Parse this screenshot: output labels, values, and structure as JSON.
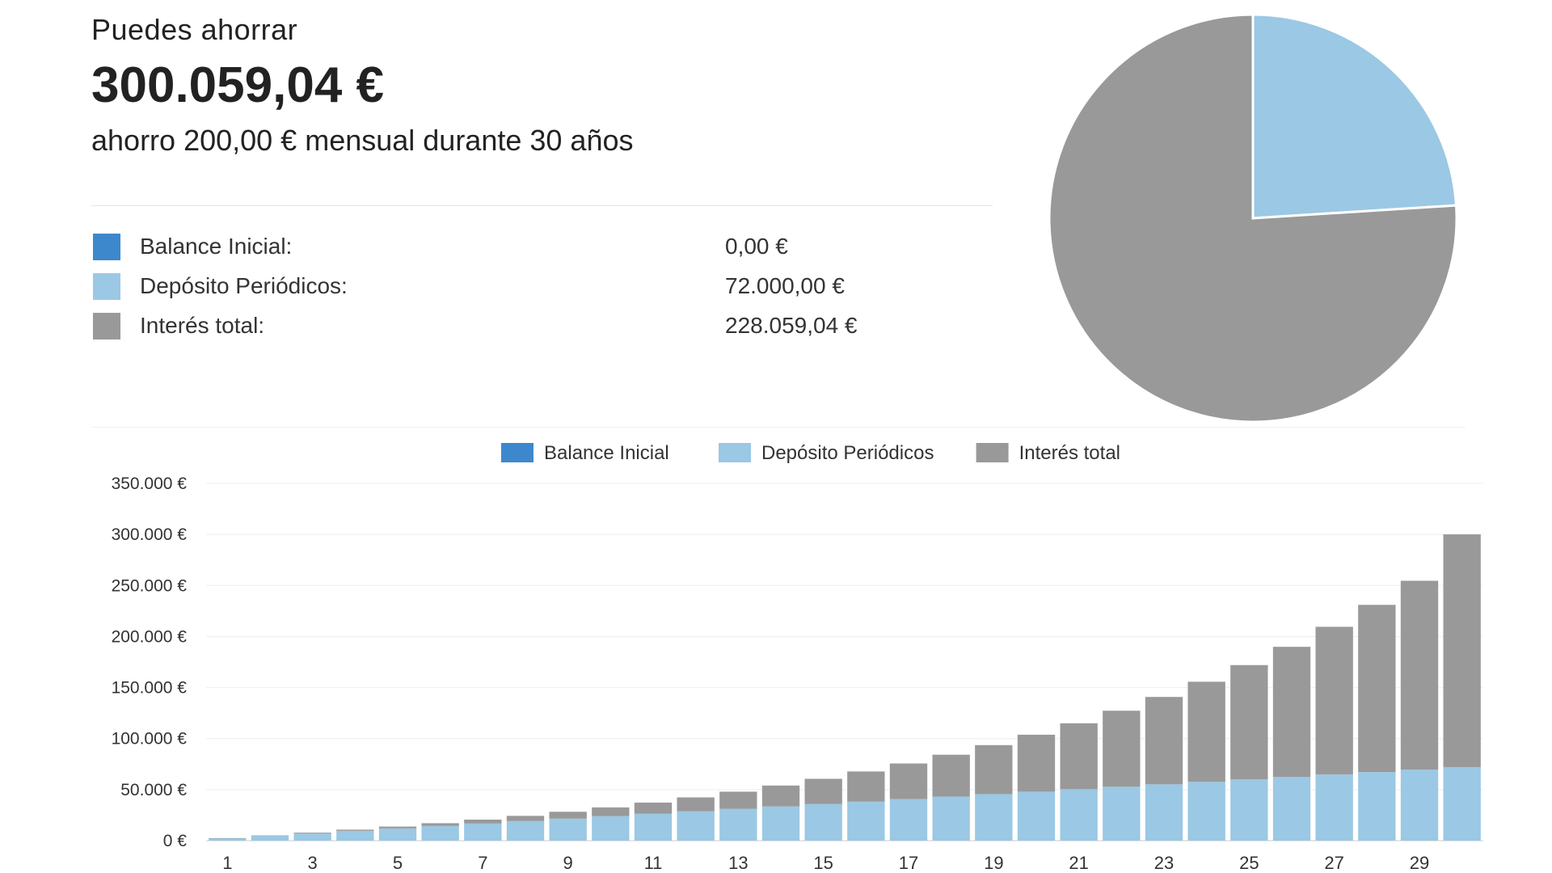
{
  "summary": {
    "label": "Puedes ahorrar",
    "amount": "300.059,04 €",
    "description": "ahorro 200,00 € mensual durante 30 años",
    "rows": [
      {
        "name": "Balance Inicial:",
        "value": "0,00 €",
        "color": "#3d88cc"
      },
      {
        "name": "Depósito Periódicos:",
        "value": "72.000,00 €",
        "color": "#9bc8e4"
      },
      {
        "name": "Interés total:",
        "value": "228.059,04 €",
        "color": "#999999"
      }
    ]
  },
  "chart_data": [
    {
      "type": "pie",
      "labels": [
        "Balance Inicial",
        "Depósito Periódicos",
        "Interés total"
      ],
      "values": [
        0,
        72000,
        228059.04
      ],
      "colors": [
        "#3d88cc",
        "#9bc8e4",
        "#999999"
      ]
    },
    {
      "type": "bar",
      "stacked": true,
      "categories": [
        1,
        2,
        3,
        4,
        5,
        6,
        7,
        8,
        9,
        10,
        11,
        12,
        13,
        14,
        15,
        16,
        17,
        18,
        19,
        20,
        21,
        22,
        23,
        24,
        25,
        26,
        27,
        28,
        29,
        30
      ],
      "x_tick_labels": [
        "1",
        "3",
        "5",
        "7",
        "9",
        "11",
        "13",
        "15",
        "17",
        "19",
        "21",
        "23",
        "25",
        "27",
        "29"
      ],
      "ylim": [
        0,
        350000
      ],
      "y_ticks": [
        0,
        50000,
        100000,
        150000,
        200000,
        250000,
        300000,
        350000
      ],
      "y_tick_labels": [
        "0 €",
        "50.000 €",
        "100.000 €",
        "150.000 €",
        "200.000 €",
        "250.000 €",
        "300.000 €",
        "350.000 €"
      ],
      "legend": [
        "Balance Inicial",
        "Depósito Periódicos",
        "Interés total"
      ],
      "legend_position": "top-center",
      "grid": true,
      "series": [
        {
          "name": "Balance Inicial",
          "color": "#3d88cc",
          "values": [
            0,
            0,
            0,
            0,
            0,
            0,
            0,
            0,
            0,
            0,
            0,
            0,
            0,
            0,
            0,
            0,
            0,
            0,
            0,
            0,
            0,
            0,
            0,
            0,
            0,
            0,
            0,
            0,
            0,
            0
          ]
        },
        {
          "name": "Depósito Periódicos",
          "color": "#9bc8e4",
          "values": [
            2400,
            4800,
            7200,
            9600,
            12000,
            14400,
            16800,
            19200,
            21600,
            24000,
            26400,
            28800,
            31200,
            33600,
            36000,
            38400,
            40800,
            43200,
            45600,
            48000,
            50400,
            52800,
            55200,
            57600,
            60000,
            62400,
            64800,
            67200,
            69600,
            72000
          ]
        },
        {
          "name": "Interés total",
          "color": "#999999",
          "values": [
            100,
            300,
            700,
            1200,
            1800,
            2700,
            3800,
            5100,
            6700,
            8600,
            10900,
            13600,
            16800,
            20400,
            24600,
            29400,
            34800,
            41000,
            48000,
            55800,
            64600,
            74500,
            85600,
            98100,
            112000,
            127500,
            144700,
            163800,
            185000,
            228059
          ]
        }
      ]
    }
  ]
}
